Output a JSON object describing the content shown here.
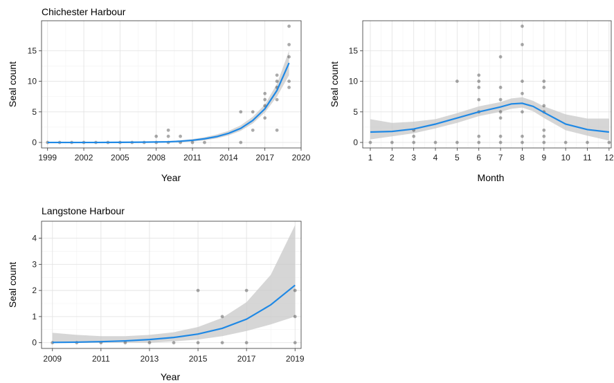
{
  "colors": {
    "trend": "#1e88e5",
    "ribbon": "#c8c8c8",
    "point": "#000000"
  },
  "chart_data": [
    {
      "id": "chichester",
      "type": "scatter",
      "title": "Chichester Harbour",
      "xlabel": "Year",
      "ylabel": "Seal count",
      "xlim": [
        1998.5,
        2020.0
      ],
      "ylim": [
        -0.9,
        19.9
      ],
      "x_ticks": [
        1999,
        2002,
        2005,
        2008,
        2011,
        2014,
        2017,
        2020
      ],
      "x_tick_labels": [
        "1999",
        "2002",
        "2005",
        "2008",
        "2011",
        "2014",
        "2017",
        "2020"
      ],
      "y_ticks": [
        0,
        5,
        10,
        15
      ],
      "y_tick_labels": [
        "0",
        "5",
        "10",
        "15"
      ],
      "grid": true,
      "points": [
        [
          1999,
          0
        ],
        [
          2000,
          0
        ],
        [
          2001,
          0
        ],
        [
          2002,
          0
        ],
        [
          2003,
          0
        ],
        [
          2004,
          0
        ],
        [
          2005,
          0
        ],
        [
          2006,
          0
        ],
        [
          2007,
          0
        ],
        [
          2008,
          0
        ],
        [
          2008,
          1
        ],
        [
          2009,
          0
        ],
        [
          2009,
          1
        ],
        [
          2009,
          2
        ],
        [
          2010,
          0
        ],
        [
          2010,
          1
        ],
        [
          2011,
          0
        ],
        [
          2012,
          0
        ],
        [
          2015,
          0
        ],
        [
          2015,
          5
        ],
        [
          2016,
          2
        ],
        [
          2016,
          5
        ],
        [
          2017,
          4
        ],
        [
          2017,
          6
        ],
        [
          2017,
          7
        ],
        [
          2017,
          8
        ],
        [
          2018,
          2
        ],
        [
          2018,
          7
        ],
        [
          2018,
          9
        ],
        [
          2018,
          10
        ],
        [
          2018,
          11
        ],
        [
          2019,
          9
        ],
        [
          2019,
          10
        ],
        [
          2019,
          14
        ],
        [
          2019,
          16
        ],
        [
          2019,
          19
        ]
      ],
      "trend": {
        "x": [
          1999,
          2001,
          2003,
          2005,
          2007,
          2009,
          2010,
          2011,
          2012,
          2013,
          2014,
          2015,
          2016,
          2017,
          2018,
          2019
        ],
        "y": [
          0.0,
          0.0,
          0.0,
          0.02,
          0.05,
          0.1,
          0.2,
          0.35,
          0.6,
          0.95,
          1.5,
          2.3,
          3.6,
          5.5,
          8.5,
          13.0
        ],
        "lower": [
          0.0,
          0.0,
          0.0,
          0.0,
          0.0,
          0.0,
          0.05,
          0.15,
          0.35,
          0.65,
          1.15,
          1.9,
          3.1,
          4.9,
          7.5,
          11.0
        ],
        "upper": [
          0.0,
          0.0,
          0.05,
          0.08,
          0.12,
          0.2,
          0.35,
          0.55,
          0.85,
          1.3,
          1.9,
          2.8,
          4.2,
          6.2,
          9.6,
          15.0
        ]
      }
    },
    {
      "id": "month",
      "type": "scatter",
      "title": "",
      "xlabel": "Month",
      "ylabel": "Seal count",
      "xlim": [
        0.65,
        12.1
      ],
      "ylim": [
        -0.9,
        19.9
      ],
      "x_ticks": [
        1,
        2,
        3,
        4,
        5,
        6,
        7,
        8,
        9,
        10,
        11,
        12
      ],
      "x_tick_labels": [
        "1",
        "2",
        "3",
        "4",
        "5",
        "6",
        "7",
        "8",
        "9",
        "10",
        "11",
        "12"
      ],
      "y_ticks": [
        0,
        5,
        10,
        15
      ],
      "y_tick_labels": [
        "0",
        "5",
        "10",
        "15"
      ],
      "grid": true,
      "points": [
        [
          1,
          0
        ],
        [
          2,
          0
        ],
        [
          3,
          0
        ],
        [
          3,
          1
        ],
        [
          3,
          2
        ],
        [
          4,
          0
        ],
        [
          5,
          0
        ],
        [
          5,
          10
        ],
        [
          6,
          0
        ],
        [
          6,
          1
        ],
        [
          6,
          5
        ],
        [
          6,
          7
        ],
        [
          6,
          9
        ],
        [
          6,
          10
        ],
        [
          6,
          11
        ],
        [
          7,
          0
        ],
        [
          7,
          1
        ],
        [
          7,
          4
        ],
        [
          7,
          5
        ],
        [
          7,
          7
        ],
        [
          7,
          9
        ],
        [
          7,
          14
        ],
        [
          8,
          0
        ],
        [
          8,
          1
        ],
        [
          8,
          5
        ],
        [
          8,
          8
        ],
        [
          8,
          10
        ],
        [
          8,
          16
        ],
        [
          8,
          19
        ],
        [
          9,
          0
        ],
        [
          9,
          1
        ],
        [
          9,
          2
        ],
        [
          9,
          5
        ],
        [
          9,
          6
        ],
        [
          9,
          9
        ],
        [
          9,
          10
        ],
        [
          10,
          0
        ],
        [
          11,
          0
        ],
        [
          12,
          0
        ]
      ],
      "trend": {
        "x": [
          1,
          2,
          3,
          4,
          5,
          6,
          7,
          7.5,
          8,
          8.5,
          9,
          10,
          11,
          12
        ],
        "y": [
          1.7,
          1.8,
          2.2,
          3.0,
          4.0,
          5.0,
          5.8,
          6.3,
          6.4,
          5.9,
          4.9,
          3.0,
          2.1,
          1.7
        ],
        "lower": [
          0.5,
          1.0,
          1.5,
          2.3,
          3.2,
          4.3,
          5.0,
          5.5,
          5.7,
          5.1,
          4.0,
          2.0,
          1.1,
          0.3
        ],
        "upper": [
          3.8,
          3.2,
          3.4,
          3.8,
          4.8,
          5.9,
          6.6,
          7.2,
          7.4,
          6.8,
          5.9,
          4.6,
          3.9,
          3.9
        ]
      }
    },
    {
      "id": "langstone",
      "type": "scatter",
      "title": "Langstone Harbour",
      "xlabel": "Year",
      "ylabel": "Seal count",
      "xlim": [
        2008.55,
        2019.25
      ],
      "ylim": [
        -0.22,
        4.65
      ],
      "x_ticks": [
        2009,
        2011,
        2013,
        2015,
        2017,
        2019
      ],
      "x_tick_labels": [
        "2009",
        "2011",
        "2013",
        "2015",
        "2017",
        "2019"
      ],
      "y_ticks": [
        0,
        1,
        2,
        3,
        4
      ],
      "y_tick_labels": [
        "0",
        "1",
        "2",
        "3",
        "4"
      ],
      "grid": true,
      "points": [
        [
          2009,
          0
        ],
        [
          2010,
          0
        ],
        [
          2011,
          0
        ],
        [
          2012,
          0
        ],
        [
          2013,
          0
        ],
        [
          2014,
          0
        ],
        [
          2015,
          0
        ],
        [
          2015,
          2
        ],
        [
          2016,
          0
        ],
        [
          2016,
          1
        ],
        [
          2017,
          0
        ],
        [
          2017,
          2
        ],
        [
          2019,
          0
        ],
        [
          2019,
          1
        ],
        [
          2019,
          2
        ]
      ],
      "trend": {
        "x": [
          2009,
          2010,
          2011,
          2012,
          2013,
          2014,
          2015,
          2016,
          2017,
          2018,
          2019
        ],
        "y": [
          0.01,
          0.02,
          0.04,
          0.07,
          0.12,
          0.2,
          0.33,
          0.55,
          0.9,
          1.45,
          2.2
        ],
        "lower": [
          0.0,
          0.0,
          0.0,
          0.0,
          0.0,
          0.05,
          0.12,
          0.25,
          0.45,
          0.7,
          1.0
        ],
        "upper": [
          0.38,
          0.3,
          0.25,
          0.25,
          0.3,
          0.4,
          0.6,
          0.95,
          1.55,
          2.6,
          4.5
        ]
      }
    }
  ]
}
